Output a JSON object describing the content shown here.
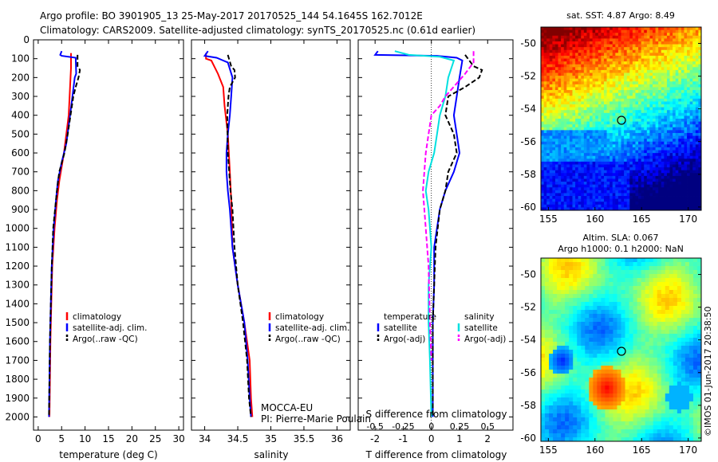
{
  "header": {
    "line1": "Argo profile: BO 3901905_13 25-May-2017 20170525_144 54.1645S 162.7012E",
    "line2": "Climatology: CARS2009. Satellite-adjusted climatology: synTS_20170525.nc (0.61d earlier)"
  },
  "colors": {
    "climatology": "#ff0000",
    "satellite": "#0000ff",
    "argo": "#000000",
    "salinity_sat": "#00e0e0",
    "salinity_argo": "#ff00ff"
  },
  "chart_data": [
    {
      "id": "temperature",
      "type": "line",
      "xlabel": "temperature (deg C)",
      "ylim": [
        0,
        2070
      ],
      "xlim": [
        -1,
        31
      ],
      "xticks": [
        0,
        5,
        10,
        15,
        20,
        25,
        30
      ],
      "yticks": [
        0,
        100,
        200,
        300,
        400,
        500,
        600,
        700,
        800,
        900,
        1000,
        1100,
        1200,
        1300,
        1400,
        1500,
        1600,
        1700,
        1800,
        1900,
        2000
      ],
      "legend": [
        "climatology",
        "satellite-adj. clim.",
        "Argo(..raw -QC)"
      ],
      "series": [
        {
          "key": "climatology",
          "style": "solid",
          "color": "#ff0000",
          "points": [
            [
              7.0,
              70
            ],
            [
              7.0,
              150
            ],
            [
              6.9,
              200
            ],
            [
              6.5,
              400
            ],
            [
              5.5,
              600
            ],
            [
              4.5,
              750
            ],
            [
              4.0,
              850
            ],
            [
              3.5,
              1000
            ],
            [
              3.0,
              1200
            ],
            [
              2.8,
              1400
            ],
            [
              2.6,
              1600
            ],
            [
              2.5,
              1800
            ],
            [
              2.4,
              2000
            ]
          ]
        },
        {
          "key": "satellite",
          "style": "solid",
          "color": "#0000ff",
          "points": [
            [
              5.0,
              60
            ],
            [
              4.7,
              80
            ],
            [
              5.0,
              85
            ],
            [
              8.0,
              95
            ],
            [
              8.1,
              180
            ],
            [
              7.8,
              200
            ],
            [
              7.3,
              300
            ],
            [
              6.8,
              400
            ],
            [
              6.0,
              550
            ],
            [
              5.0,
              650
            ],
            [
              4.2,
              750
            ],
            [
              3.8,
              850
            ],
            [
              3.3,
              1000
            ],
            [
              2.9,
              1200
            ],
            [
              2.7,
              1400
            ],
            [
              2.5,
              1600
            ],
            [
              2.4,
              1800
            ],
            [
              2.3,
              2000
            ]
          ]
        },
        {
          "key": "argo",
          "style": "dashed",
          "color": "#000000",
          "points": [
            [
              8.4,
              80
            ],
            [
              8.4,
              140
            ],
            [
              8.9,
              160
            ],
            [
              8.6,
              200
            ],
            [
              8.0,
              250
            ],
            [
              7.5,
              300
            ],
            [
              6.9,
              400
            ],
            [
              6.3,
              500
            ],
            [
              5.6,
              600
            ],
            [
              4.5,
              700
            ],
            [
              4.0,
              800
            ],
            [
              3.6,
              900
            ],
            [
              3.2,
              1000
            ],
            [
              2.9,
              1200
            ],
            [
              2.7,
              1400
            ],
            [
              2.5,
              1600
            ],
            [
              2.4,
              1800
            ],
            [
              2.3,
              2000
            ]
          ]
        }
      ]
    },
    {
      "id": "salinity",
      "type": "line",
      "xlabel": "salinity",
      "ylim": [
        0,
        2070
      ],
      "xlim": [
        33.8,
        36.2
      ],
      "xticks": [
        34,
        34.5,
        35,
        35.5,
        36
      ],
      "xticklabels": [
        "34",
        "34.5",
        "35",
        "35.5",
        "36"
      ],
      "legend": [
        "climatology",
        "satellite-adj. clim.",
        "Argo(..raw -QC)"
      ],
      "annotation": [
        "MOCCA-EU",
        "PI: Pierre-Marie Poulain"
      ],
      "series": [
        {
          "key": "climatology",
          "style": "solid",
          "color": "#ff0000",
          "points": [
            [
              34.02,
              70
            ],
            [
              34.02,
              100
            ],
            [
              34.1,
              110
            ],
            [
              34.2,
              180
            ],
            [
              34.28,
              250
            ],
            [
              34.3,
              350
            ],
            [
              34.35,
              500
            ],
            [
              34.38,
              700
            ],
            [
              34.4,
              850
            ],
            [
              34.42,
              1100
            ],
            [
              34.5,
              1300
            ],
            [
              34.6,
              1500
            ],
            [
              34.68,
              1700
            ],
            [
              34.7,
              1900
            ],
            [
              34.72,
              2000
            ]
          ]
        },
        {
          "key": "satellite",
          "style": "solid",
          "color": "#0000ff",
          "points": [
            [
              34.05,
              60
            ],
            [
              34.0,
              85
            ],
            [
              34.18,
              95
            ],
            [
              34.28,
              110
            ],
            [
              34.35,
              120
            ],
            [
              34.42,
              200
            ],
            [
              34.4,
              300
            ],
            [
              34.38,
              400
            ],
            [
              34.35,
              500
            ],
            [
              34.33,
              600
            ],
            [
              34.33,
              700
            ],
            [
              34.35,
              800
            ],
            [
              34.38,
              900
            ],
            [
              34.42,
              1100
            ],
            [
              34.5,
              1300
            ],
            [
              34.6,
              1500
            ],
            [
              34.65,
              1700
            ],
            [
              34.68,
              1900
            ],
            [
              34.7,
              2000
            ]
          ]
        },
        {
          "key": "argo",
          "style": "dashed",
          "color": "#000000",
          "points": [
            [
              34.35,
              80
            ],
            [
              34.4,
              140
            ],
            [
              34.45,
              160
            ],
            [
              34.46,
              200
            ],
            [
              34.38,
              250
            ],
            [
              34.36,
              300
            ],
            [
              34.34,
              400
            ],
            [
              34.35,
              600
            ],
            [
              34.37,
              700
            ],
            [
              34.39,
              800
            ],
            [
              34.42,
              900
            ],
            [
              34.45,
              1100
            ],
            [
              34.5,
              1300
            ],
            [
              34.58,
              1500
            ],
            [
              34.64,
              1700
            ],
            [
              34.67,
              1900
            ],
            [
              34.7,
              2000
            ]
          ]
        }
      ]
    },
    {
      "id": "difference",
      "type": "line",
      "xlabel": "T difference from climatology",
      "xlabel_top": "S difference from climatology",
      "ylim": [
        0,
        2070
      ],
      "xlim": [
        -2.6,
        2.9
      ],
      "xticks": [
        -2,
        -1,
        0,
        1,
        2
      ],
      "xticklabels": [
        "-2",
        "-1",
        "0",
        "1",
        "2"
      ],
      "sticks": [
        "-0.5",
        "-0.25",
        "0",
        "0.25",
        "0.5"
      ],
      "legend": {
        "temperature_title": "temperature",
        "salinity_title": "salinity",
        "temp_items": [
          "satellite",
          "Argo(-adj)"
        ],
        "sal_items": [
          "satellite",
          "Argo(-adj)"
        ]
      },
      "series": [
        {
          "key": "t_sat",
          "style": "solid",
          "color": "#0000ff",
          "points": [
            [
              -1.9,
              60
            ],
            [
              -2.0,
              80
            ],
            [
              0.2,
              85
            ],
            [
              0.9,
              95
            ],
            [
              1.1,
              110
            ],
            [
              1.0,
              200
            ],
            [
              0.9,
              300
            ],
            [
              0.8,
              400
            ],
            [
              0.9,
              500
            ],
            [
              1.0,
              600
            ],
            [
              0.8,
              700
            ],
            [
              0.5,
              800
            ],
            [
              0.3,
              900
            ],
            [
              0.1,
              1100
            ],
            [
              0.1,
              1300
            ],
            [
              0.05,
              1500
            ],
            [
              0.05,
              1700
            ],
            [
              0.05,
              2000
            ]
          ]
        },
        {
          "key": "t_argo",
          "style": "dashed",
          "color": "#000000",
          "points": [
            [
              1.2,
              80
            ],
            [
              1.5,
              140
            ],
            [
              1.8,
              160
            ],
            [
              1.7,
              200
            ],
            [
              1.2,
              250
            ],
            [
              0.6,
              300
            ],
            [
              0.5,
              400
            ],
            [
              0.8,
              500
            ],
            [
              0.9,
              600
            ],
            [
              0.6,
              700
            ],
            [
              0.5,
              800
            ],
            [
              0.3,
              900
            ],
            [
              0.15,
              1100
            ],
            [
              0.1,
              1300
            ],
            [
              0.05,
              1500
            ],
            [
              0.05,
              1700
            ],
            [
              0.05,
              2000
            ]
          ]
        },
        {
          "key": "s_sat",
          "style": "solid",
          "color": "#00e0e0",
          "points": [
            [
              -1.3,
              60
            ],
            [
              -0.8,
              80
            ],
            [
              0.3,
              90
            ],
            [
              0.8,
              110
            ],
            [
              0.6,
              200
            ],
            [
              0.5,
              300
            ],
            [
              0.3,
              400
            ],
            [
              0.2,
              500
            ],
            [
              0.1,
              600
            ],
            [
              -0.1,
              700
            ],
            [
              -0.2,
              800
            ],
            [
              -0.1,
              900
            ],
            [
              0.0,
              1100
            ],
            [
              -0.1,
              1300
            ],
            [
              -0.1,
              1500
            ],
            [
              -0.05,
              1700
            ],
            [
              0.0,
              2000
            ]
          ]
        },
        {
          "key": "s_argo",
          "style": "dashed",
          "color": "#ff00ff",
          "points": [
            [
              1.5,
              60
            ],
            [
              1.5,
              120
            ],
            [
              1.2,
              180
            ],
            [
              0.5,
              300
            ],
            [
              0.3,
              350
            ],
            [
              0.0,
              400
            ],
            [
              -0.2,
              600
            ],
            [
              -0.3,
              800
            ],
            [
              -0.2,
              1000
            ],
            [
              -0.1,
              1200
            ],
            [
              -0.05,
              1500
            ],
            [
              0.0,
              1700
            ]
          ]
        }
      ]
    }
  ],
  "maps": {
    "sst": {
      "title": "sat. SST: 4.87 Argo: 8.49",
      "yticks": [
        "-50",
        "-52",
        "-54",
        "-56",
        "-58",
        "-60"
      ],
      "xticks": [
        "155",
        "160",
        "165",
        "170"
      ]
    },
    "sla": {
      "title1": "Altim. SLA: 0.067",
      "title2": "Argo h1000: 0.1 h2000: NaN",
      "yticks": [
        "-50",
        "-52",
        "-54",
        "-56",
        "-58",
        "-60"
      ],
      "xticks": [
        "155",
        "160",
        "165",
        "170"
      ]
    },
    "credit": "©IMOS 01-Jun-2017 20:38:50"
  },
  "yticklabels": [
    "0",
    "100",
    "200",
    "300",
    "400",
    "500",
    "600",
    "700",
    "800",
    "900",
    "1000",
    "1100",
    "1200",
    "1300",
    "1400",
    "1500",
    "1600",
    "1700",
    "1800",
    "1900",
    "2000"
  ]
}
